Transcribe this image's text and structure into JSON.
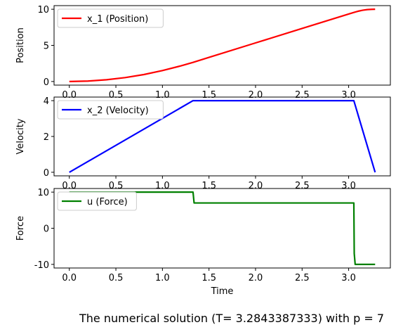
{
  "figure_title": "The numerical solution (T= 3.2843387333) with p = 7",
  "chart_data": [
    {
      "type": "line",
      "ylabel": "Position",
      "xlabel": "",
      "xlim": [
        -0.164,
        3.448
      ],
      "ylim": [
        -0.5,
        10.5
      ],
      "xticks": [
        0.0,
        0.5,
        1.0,
        1.5,
        2.0,
        2.5,
        3.0
      ],
      "yticks": [
        0,
        5,
        10
      ],
      "legend_position": "top-left",
      "series": [
        {
          "name": "x_1 (Position)",
          "color": "#ff0000",
          "x": [
            0.0,
            0.2,
            0.4,
            0.6,
            0.8,
            1.0,
            1.2,
            1.3286,
            1.5,
            2.0,
            2.5,
            3.0,
            3.0557,
            3.1,
            3.15,
            3.2,
            3.25,
            3.2843
          ],
          "y": [
            0.0,
            0.06,
            0.24,
            0.54,
            0.96,
            1.51,
            2.17,
            2.65,
            3.34,
            5.34,
            7.34,
            9.34,
            9.56,
            9.72,
            9.86,
            9.95,
            9.99,
            10.0
          ]
        }
      ]
    },
    {
      "type": "line",
      "ylabel": "Velocity",
      "xlabel": "",
      "xlim": [
        -0.164,
        3.448
      ],
      "ylim": [
        -0.2,
        4.2
      ],
      "xticks": [
        0.0,
        0.5,
        1.0,
        1.5,
        2.0,
        2.5,
        3.0
      ],
      "yticks": [
        0,
        2,
        4
      ],
      "legend_position": "top-left",
      "series": [
        {
          "name": "x_2 (Velocity)",
          "color": "#0000ff",
          "x": [
            0.0,
            1.3286,
            3.0557,
            3.2843
          ],
          "y": [
            0.0,
            4.0,
            4.0,
            0.0
          ]
        }
      ]
    },
    {
      "type": "line",
      "ylabel": "Force",
      "xlabel": "Time",
      "xlim": [
        -0.164,
        3.448
      ],
      "ylim": [
        -11,
        11
      ],
      "xticks": [
        0.0,
        0.5,
        1.0,
        1.5,
        2.0,
        2.5,
        3.0
      ],
      "yticks": [
        -10,
        0,
        10
      ],
      "legend_position": "top-left",
      "series": [
        {
          "name": "u (Force)",
          "color": "#008000",
          "x": [
            0.0,
            1.3286,
            1.34,
            3.0557,
            3.06,
            3.07,
            3.2843
          ],
          "y": [
            10.0,
            10.0,
            7.0,
            7.0,
            -7.0,
            -10.0,
            -10.0
          ]
        }
      ]
    }
  ]
}
